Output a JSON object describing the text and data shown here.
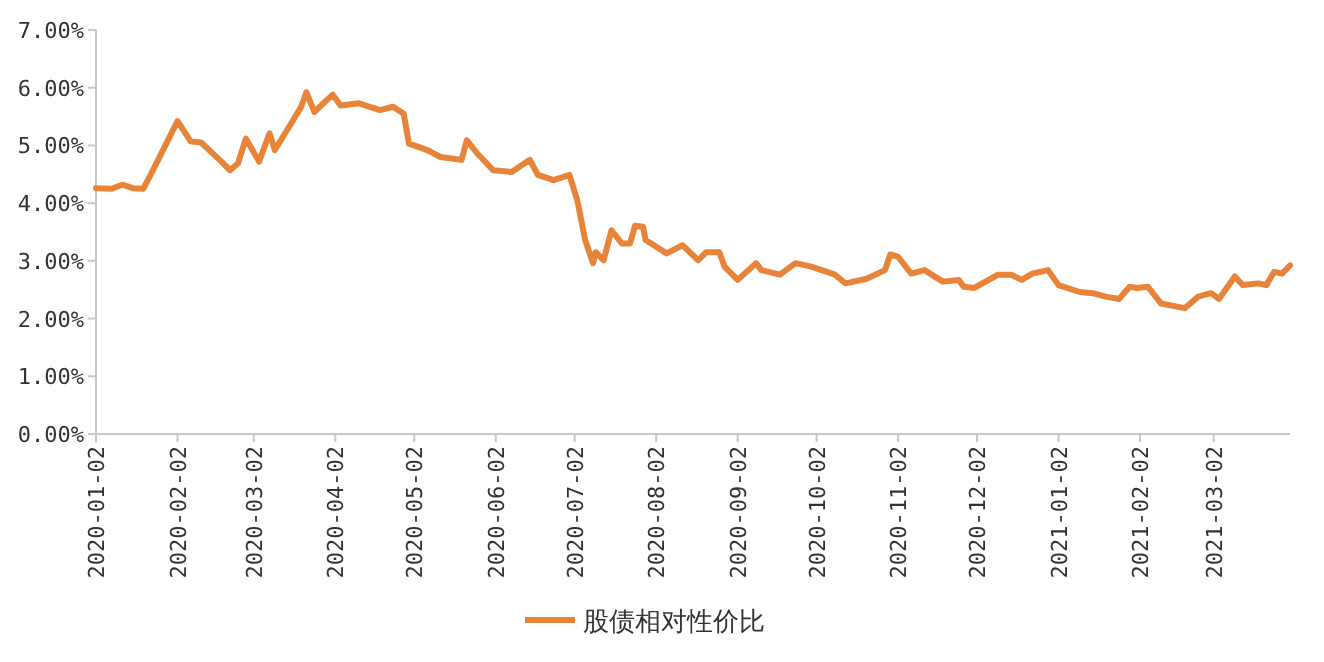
{
  "chart_data": {
    "type": "line",
    "x": [
      "2020-01-02",
      "2020-01-08",
      "2020-01-12",
      "2020-01-16",
      "2020-01-20",
      "2020-01-23",
      "2020-02-02",
      "2020-02-07",
      "2020-02-11",
      "2020-02-18",
      "2020-02-22",
      "2020-02-25",
      "2020-02-28",
      "2020-03-04",
      "2020-03-08",
      "2020-03-10",
      "2020-03-17",
      "2020-03-20",
      "2020-03-22",
      "2020-03-25",
      "2020-04-01",
      "2020-04-04",
      "2020-04-11",
      "2020-04-19",
      "2020-04-24",
      "2020-04-28",
      "2020-04-30",
      "2020-05-07",
      "2020-05-12",
      "2020-05-20",
      "2020-05-22",
      "2020-05-26",
      "2020-06-01",
      "2020-06-08",
      "2020-06-15",
      "2020-06-18",
      "2020-06-24",
      "2020-06-30",
      "2020-07-03",
      "2020-07-06",
      "2020-07-09",
      "2020-07-10",
      "2020-07-13",
      "2020-07-16",
      "2020-07-20",
      "2020-07-23",
      "2020-07-25",
      "2020-07-28",
      "2020-07-29",
      "2020-08-06",
      "2020-08-12",
      "2020-08-18",
      "2020-08-21",
      "2020-08-26",
      "2020-08-28",
      "2020-09-02",
      "2020-09-09",
      "2020-09-11",
      "2020-09-18",
      "2020-09-24",
      "2020-09-30",
      "2020-10-09",
      "2020-10-13",
      "2020-10-21",
      "2020-10-28",
      "2020-10-30",
      "2020-11-02",
      "2020-11-07",
      "2020-11-12",
      "2020-11-19",
      "2020-11-25",
      "2020-11-27",
      "2020-12-01",
      "2020-12-10",
      "2020-12-15",
      "2020-12-19",
      "2020-12-23",
      "2020-12-29",
      "2021-01-02",
      "2021-01-10",
      "2021-01-15",
      "2021-01-20",
      "2021-01-25",
      "2021-01-29",
      "2021-02-01",
      "2021-02-05",
      "2021-02-10",
      "2021-02-19",
      "2021-02-24",
      "2021-03-01",
      "2021-03-04",
      "2021-03-10",
      "2021-03-13",
      "2021-03-19",
      "2021-03-22",
      "2021-03-25",
      "2021-03-28",
      "2021-03-31"
    ],
    "series": [
      {
        "name": "股债相对性价比",
        "color": "#e8843a",
        "values": [
          4.26,
          4.25,
          4.32,
          4.26,
          4.25,
          4.51,
          5.42,
          5.07,
          5.05,
          4.75,
          4.57,
          4.69,
          5.12,
          4.72,
          5.21,
          4.92,
          5.44,
          5.67,
          5.92,
          5.58,
          5.88,
          5.69,
          5.73,
          5.61,
          5.67,
          5.55,
          5.03,
          4.92,
          4.8,
          4.75,
          5.09,
          4.86,
          4.57,
          4.54,
          4.75,
          4.49,
          4.4,
          4.49,
          4.05,
          3.36,
          2.96,
          3.15,
          3.01,
          3.53,
          3.3,
          3.3,
          3.61,
          3.59,
          3.36,
          3.13,
          3.27,
          3.01,
          3.15,
          3.15,
          2.9,
          2.67,
          2.96,
          2.84,
          2.76,
          2.96,
          2.9,
          2.76,
          2.61,
          2.69,
          2.84,
          3.11,
          3.07,
          2.78,
          2.84,
          2.64,
          2.67,
          2.55,
          2.53,
          2.76,
          2.76,
          2.67,
          2.78,
          2.84,
          2.58,
          2.46,
          2.44,
          2.38,
          2.34,
          2.55,
          2.53,
          2.55,
          2.26,
          2.18,
          2.38,
          2.44,
          2.34,
          2.73,
          2.58,
          2.61,
          2.58,
          2.81,
          2.78,
          2.92
        ]
      }
    ],
    "xlim": [
      "2020-01-02",
      "2021-03-31"
    ],
    "xticks": [
      "2020-01-02",
      "2020-02-02",
      "2020-03-02",
      "2020-04-02",
      "2020-05-02",
      "2020-06-02",
      "2020-07-02",
      "2020-08-02",
      "2020-09-02",
      "2020-10-02",
      "2020-11-02",
      "2020-12-02",
      "2021-01-02",
      "2021-02-02",
      "2021-03-02"
    ],
    "ylim": [
      0,
      7
    ],
    "yticks": [
      {
        "value": 0,
        "label": "0.00%"
      },
      {
        "value": 1,
        "label": "1.00%"
      },
      {
        "value": 2,
        "label": "2.00%"
      },
      {
        "value": 3,
        "label": "3.00%"
      },
      {
        "value": 4,
        "label": "4.00%"
      },
      {
        "value": 5,
        "label": "5.00%"
      },
      {
        "value": 6,
        "label": "6.00%"
      },
      {
        "value": 7,
        "label": "7.00%"
      }
    ],
    "legend": "bottom"
  }
}
